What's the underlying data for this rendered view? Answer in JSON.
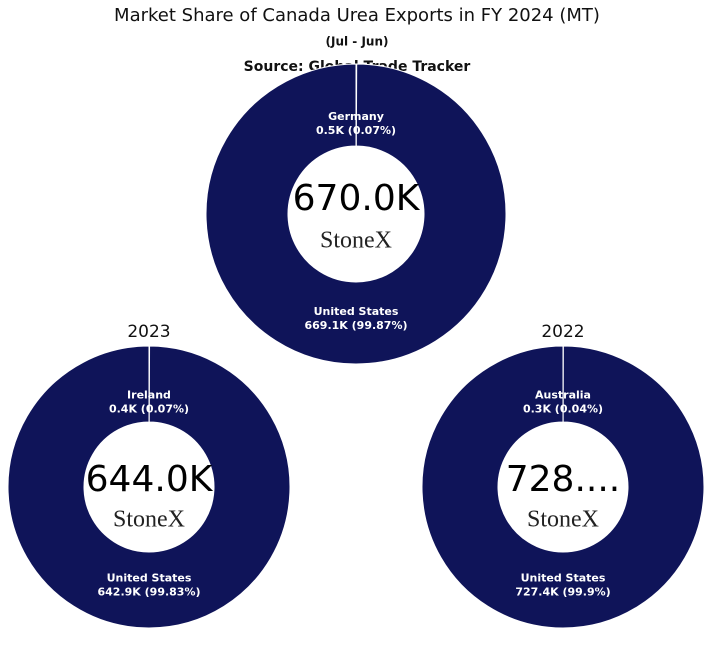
{
  "header": {
    "title": "Market Share of Canada Urea Exports in FY 2024 (MT)",
    "subtitle": "(Jul - Jun)",
    "source": "Source: Global Trade Tracker"
  },
  "chart_data": [
    {
      "type": "donut",
      "categories": [
        "Germany",
        "United States"
      ],
      "values": [
        0.5,
        669.1
      ],
      "value_labels": [
        "0.5K (0.07%)",
        "669.1K (99.87%)"
      ],
      "colors": [
        "#0f1459",
        "#0f1459"
      ],
      "center_label": "670.0K",
      "logo": "StoneX"
    },
    {
      "type": "donut",
      "label": "2023",
      "categories": [
        "Ireland",
        "United States"
      ],
      "values": [
        0.4,
        642.9
      ],
      "value_labels": [
        "0.4K (0.07%)",
        "642.9K (99.83%)"
      ],
      "colors": [
        "#0f1459",
        "#0f1459"
      ],
      "center_label": "644.0K",
      "logo": "StoneX"
    },
    {
      "type": "donut",
      "label": "2022",
      "categories": [
        "Australia",
        "United States"
      ],
      "values": [
        0.3,
        727.4
      ],
      "value_labels": [
        "0.3K (0.04%)",
        "727.4K (99.9%)"
      ],
      "colors": [
        "#0f1459",
        "#0f1459"
      ],
      "center_label": "728....",
      "logo": "StoneX"
    }
  ]
}
